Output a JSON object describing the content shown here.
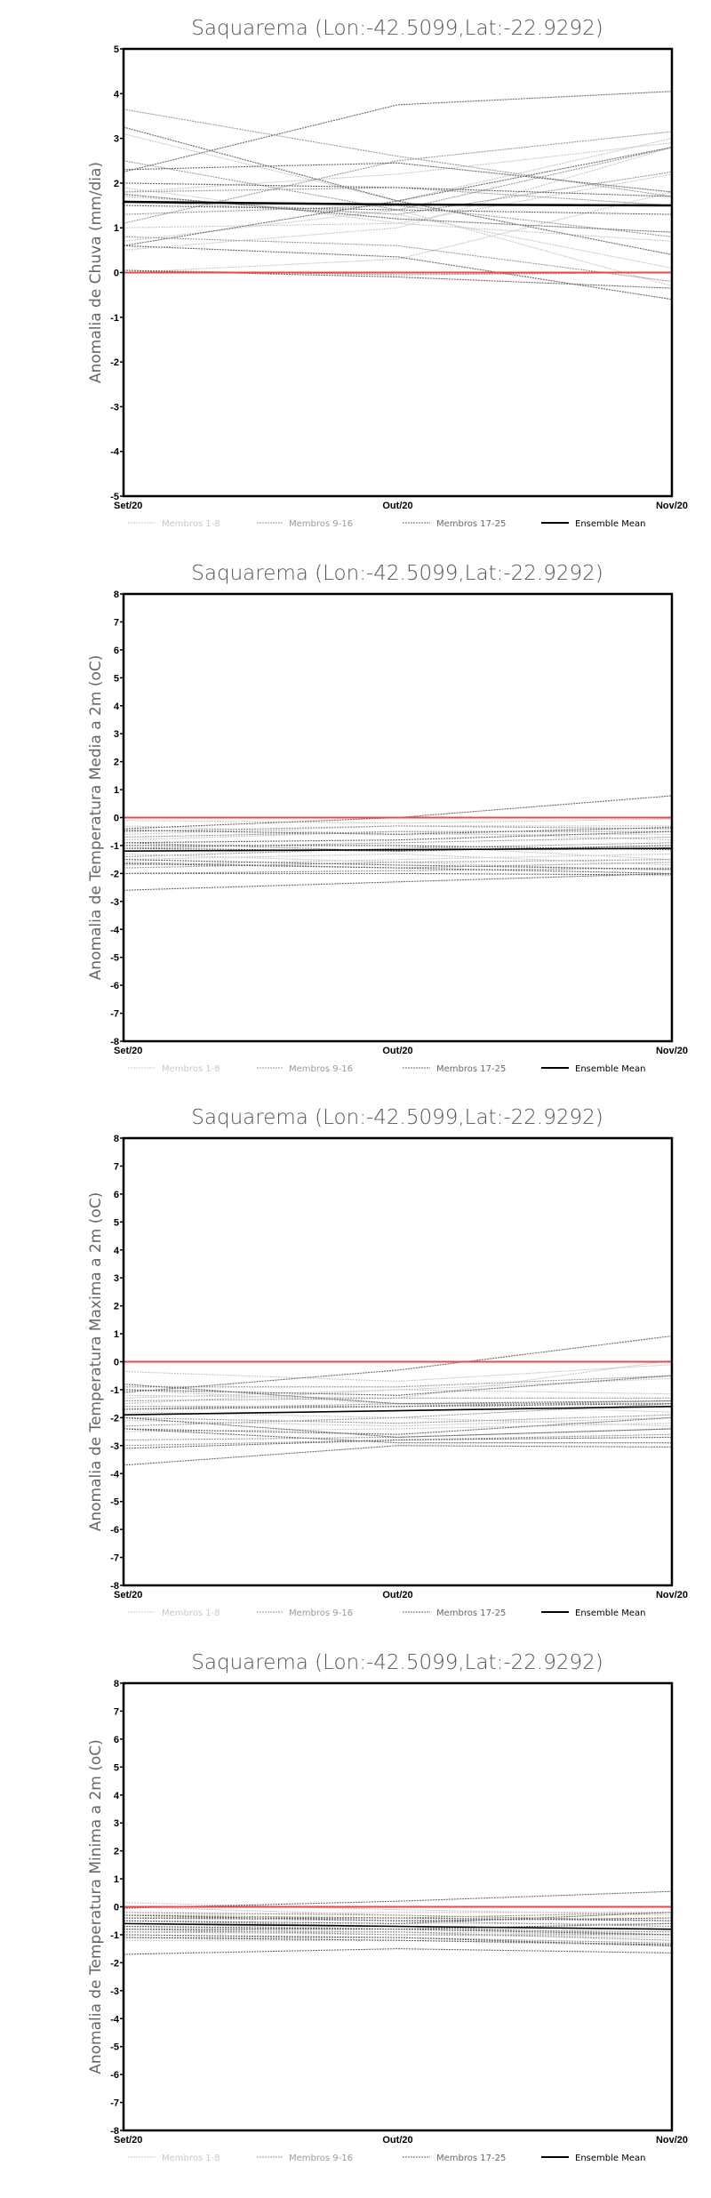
{
  "legend": {
    "items": [
      {
        "label": "Membros 1-8",
        "color": "#c8c8c8",
        "dashed": true
      },
      {
        "label": "Membros 9-16",
        "color": "#9a9a9a",
        "dashed": true
      },
      {
        "label": "Membros 17-25",
        "color": "#6a6a6a",
        "dashed": true
      },
      {
        "label": "Ensemble Mean",
        "color": "#000000",
        "dashed": false
      }
    ]
  },
  "reference_line_color": "#f04848",
  "chart_data": [
    {
      "type": "line",
      "title": "Saquarema (Lon:-42.5099,Lat:-22.9292)",
      "ylabel": "Anomalia de Chuva (mm/dia)",
      "xlabel": "",
      "categories": [
        "Set/20",
        "Out/20",
        "Nov/20"
      ],
      "ylim": [
        -5,
        5
      ],
      "yticks": [
        "-5",
        "-4",
        "-3",
        "-2",
        "-1",
        "0",
        "1",
        "2",
        "3",
        "4",
        "5"
      ],
      "grid": false,
      "legend_position": "bottom",
      "ensemble_mean": [
        1.58,
        1.52,
        1.5
      ],
      "groups": [
        [
          [
            3.1,
            1.6,
            3.0
          ],
          [
            1.8,
            2.2,
            2.9
          ],
          [
            1.0,
            1.1,
            2.2
          ],
          [
            0.7,
            1.4,
            -0.3
          ],
          [
            1.9,
            1.1,
            0.7
          ],
          [
            0.5,
            1.0,
            2.8
          ],
          [
            1.7,
            1.3,
            0.1
          ],
          [
            0.0,
            0.3,
            1.8
          ]
        ],
        [
          [
            3.65,
            2.6,
            1.7
          ],
          [
            2.5,
            1.4,
            2.8
          ],
          [
            1.1,
            2.5,
            3.15
          ],
          [
            1.8,
            1.9,
            1.5
          ],
          [
            1.3,
            1.5,
            0.8
          ],
          [
            0.8,
            0.6,
            -0.2
          ],
          [
            1.6,
            1.3,
            2.25
          ],
          [
            0.05,
            -0.05,
            0.0
          ]
        ],
        [
          [
            2.25,
            3.75,
            4.05
          ],
          [
            3.25,
            1.6,
            0.4
          ],
          [
            2.3,
            2.45,
            1.8
          ],
          [
            0.6,
            1.6,
            2.8
          ],
          [
            2.0,
            1.9,
            1.7
          ],
          [
            0.6,
            0.35,
            -0.6
          ],
          [
            1.5,
            1.4,
            1.3
          ],
          [
            0.05,
            -0.1,
            -0.35
          ],
          [
            1.75,
            1.2,
            0.9
          ]
        ]
      ]
    },
    {
      "type": "line",
      "title": "Saquarema (Lon:-42.5099,Lat:-22.9292)",
      "ylabel": "Anomalia de Temperatura Media a 2m (oC)",
      "xlabel": "",
      "categories": [
        "Set/20",
        "Out/20",
        "Nov/20"
      ],
      "ylim": [
        -8,
        8
      ],
      "yticks": [
        "-8",
        "-7",
        "-6",
        "-5",
        "-4",
        "-3",
        "-2",
        "-1",
        "0",
        "1",
        "2",
        "3",
        "4",
        "5",
        "6",
        "7",
        "8"
      ],
      "grid": false,
      "legend_position": "bottom",
      "ensemble_mean": [
        -1.2,
        -1.15,
        -1.1
      ],
      "groups": [
        [
          [
            -0.1,
            -0.2,
            -0.05
          ],
          [
            -0.8,
            -0.5,
            -0.8
          ],
          [
            -1.5,
            -1.3,
            -1.7
          ],
          [
            -0.3,
            -0.6,
            -0.6
          ],
          [
            -1.0,
            -1.0,
            -1.5
          ],
          [
            -1.7,
            -1.5,
            -1.3
          ],
          [
            -0.6,
            -0.3,
            -0.3
          ],
          [
            -1.3,
            -1.6,
            -1.9
          ]
        ],
        [
          [
            -0.5,
            -0.3,
            -0.4
          ],
          [
            -1.1,
            -0.9,
            -0.7
          ],
          [
            -1.6,
            -1.8,
            -1.6
          ],
          [
            -0.9,
            -1.2,
            -1.0
          ],
          [
            -2.0,
            -1.9,
            -1.8
          ],
          [
            -1.4,
            -1.1,
            -0.9
          ],
          [
            -0.7,
            -0.5,
            -0.5
          ],
          [
            -1.8,
            -1.6,
            -1.5
          ]
        ],
        [
          [
            -0.4,
            0.0,
            0.78
          ],
          [
            -2.6,
            -2.3,
            -2.0
          ],
          [
            -2.0,
            -2.0,
            -2.05
          ],
          [
            -1.0,
            -1.0,
            -1.15
          ],
          [
            -0.45,
            -0.6,
            -0.35
          ],
          [
            -1.5,
            -1.7,
            -1.85
          ],
          [
            -1.1,
            -1.2,
            -1.0
          ],
          [
            -1.65,
            -1.8,
            -2.0
          ],
          [
            -0.9,
            -0.8,
            -0.5
          ]
        ]
      ]
    },
    {
      "type": "line",
      "title": "Saquarema (Lon:-42.5099,Lat:-22.9292)",
      "ylabel": "Anomalia de Temperatura Maxima a 2m (oC)",
      "xlabel": "",
      "categories": [
        "Set/20",
        "Out/20",
        "Nov/20"
      ],
      "ylim": [
        -8,
        8
      ],
      "yticks": [
        "-8",
        "-7",
        "-6",
        "-5",
        "-4",
        "-3",
        "-2",
        "-1",
        "0",
        "1",
        "2",
        "3",
        "4",
        "5",
        "6",
        "7",
        "8"
      ],
      "grid": false,
      "legend_position": "bottom",
      "ensemble_mean": [
        -1.9,
        -1.75,
        -1.6
      ],
      "groups": [
        [
          [
            -0.35,
            -0.7,
            -0.1
          ],
          [
            -1.3,
            -1.0,
            -1.15
          ],
          [
            -2.1,
            -2.3,
            -2.0
          ],
          [
            -1.5,
            -1.0,
            -0.6
          ],
          [
            -2.5,
            -2.4,
            -2.2
          ],
          [
            -1.0,
            -1.5,
            -1.8
          ],
          [
            -1.8,
            -2.0,
            -2.3
          ],
          [
            -1.2,
            -1.3,
            0.05
          ]
        ],
        [
          [
            -0.9,
            -0.9,
            -0.5
          ],
          [
            -2.3,
            -2.0,
            -1.5
          ],
          [
            -1.6,
            -1.6,
            -1.4
          ],
          [
            -2.8,
            -2.7,
            -2.4
          ],
          [
            -1.4,
            -1.3,
            -1.3
          ],
          [
            -2.0,
            -2.2,
            -1.9
          ],
          [
            -3.0,
            -2.8,
            -2.6
          ],
          [
            -1.7,
            -1.5,
            -1.5
          ]
        ],
        [
          [
            -1.1,
            -0.3,
            0.92
          ],
          [
            -3.7,
            -3.0,
            -3.05
          ],
          [
            -0.8,
            -1.5,
            -1.4
          ],
          [
            -2.4,
            -2.9,
            -2.9
          ],
          [
            -1.7,
            -1.6,
            -1.5
          ],
          [
            -3.1,
            -2.8,
            -2.7
          ],
          [
            -1.0,
            -1.2,
            -0.5
          ],
          [
            -2.0,
            -2.7,
            -2.4
          ],
          [
            -2.4,
            -2.6,
            -2.0
          ]
        ]
      ]
    },
    {
      "type": "line",
      "title": "Saquarema (Lon:-42.5099,Lat:-22.9292)",
      "ylabel": "Anomalia de Temperatura Minima a 2m (oC)",
      "xlabel": "",
      "categories": [
        "Set/20",
        "Out/20",
        "Nov/20"
      ],
      "ylim": [
        -8,
        8
      ],
      "yticks": [
        "-8",
        "-7",
        "-6",
        "-5",
        "-4",
        "-3",
        "-2",
        "-1",
        "0",
        "1",
        "2",
        "3",
        "4",
        "5",
        "6",
        "7",
        "8"
      ],
      "grid": false,
      "legend_position": "bottom",
      "ensemble_mean": [
        -0.6,
        -0.7,
        -0.8
      ],
      "groups": [
        [
          [
            0.15,
            -0.1,
            -0.3
          ],
          [
            -0.3,
            -0.2,
            -0.2
          ],
          [
            -0.8,
            -0.9,
            -1.0
          ],
          [
            -1.2,
            -1.2,
            -1.4
          ],
          [
            -0.5,
            -0.6,
            -0.6
          ],
          [
            0.0,
            -0.3,
            -0.5
          ],
          [
            -0.9,
            -1.0,
            -1.1
          ],
          [
            -0.6,
            -0.8,
            -0.9
          ]
        ],
        [
          [
            -0.2,
            -0.3,
            -0.5
          ],
          [
            -0.7,
            -0.8,
            -0.9
          ],
          [
            -1.1,
            -1.1,
            -1.3
          ],
          [
            -0.4,
            -0.5,
            -0.7
          ],
          [
            -0.5,
            -0.7,
            -1.0
          ],
          [
            -0.9,
            -0.9,
            -1.2
          ],
          [
            -0.3,
            -0.4,
            -0.2
          ],
          [
            -0.8,
            -1.0,
            -1.0
          ]
        ],
        [
          [
            -0.05,
            0.2,
            0.55
          ],
          [
            -1.7,
            -1.5,
            -1.65
          ],
          [
            -0.4,
            -0.4,
            -0.5
          ],
          [
            -1.1,
            -1.2,
            -1.35
          ],
          [
            -0.8,
            -0.8,
            -1.0
          ],
          [
            -0.5,
            -0.6,
            -0.2
          ],
          [
            -1.0,
            -1.1,
            -1.4
          ],
          [
            -0.7,
            -0.8,
            -0.6
          ],
          [
            -0.3,
            -0.5,
            -0.4
          ]
        ]
      ]
    }
  ]
}
